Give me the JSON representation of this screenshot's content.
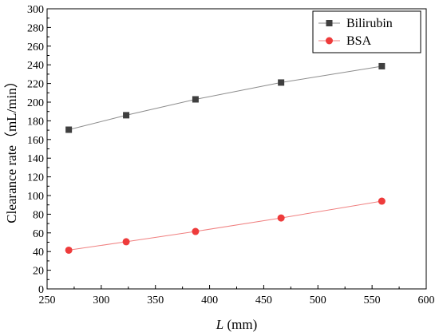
{
  "chart_data": {
    "type": "line",
    "xlabel_italic": "L",
    "xlabel_unit": " (mm)",
    "ylabel": "Clearance rate（mL/min）",
    "xlim": [
      250,
      600
    ],
    "ylim": [
      0,
      300
    ],
    "xticks": [
      "250",
      "300",
      "350",
      "400",
      "450",
      "500",
      "550",
      "600"
    ],
    "yticks": [
      "0",
      "20",
      "40",
      "60",
      "80",
      "100",
      "120",
      "140",
      "160",
      "180",
      "200",
      "220",
      "240",
      "260",
      "280",
      "300"
    ],
    "grid": false,
    "legend_position": "top-right",
    "series": [
      {
        "name": "Bilirubin",
        "marker": "square",
        "marker_color": "#3f3f3f",
        "line_color": "#8c8c8c",
        "x": [
          270,
          323,
          387,
          466,
          559
        ],
        "y": [
          170.5,
          186,
          203,
          221,
          238.5
        ]
      },
      {
        "name": "BSA",
        "marker": "circle",
        "marker_color": "#ee3b3b",
        "line_color": "#f08080",
        "x": [
          270,
          323,
          387,
          466,
          559
        ],
        "y": [
          41.5,
          50.5,
          61.5,
          76,
          94
        ]
      }
    ]
  }
}
